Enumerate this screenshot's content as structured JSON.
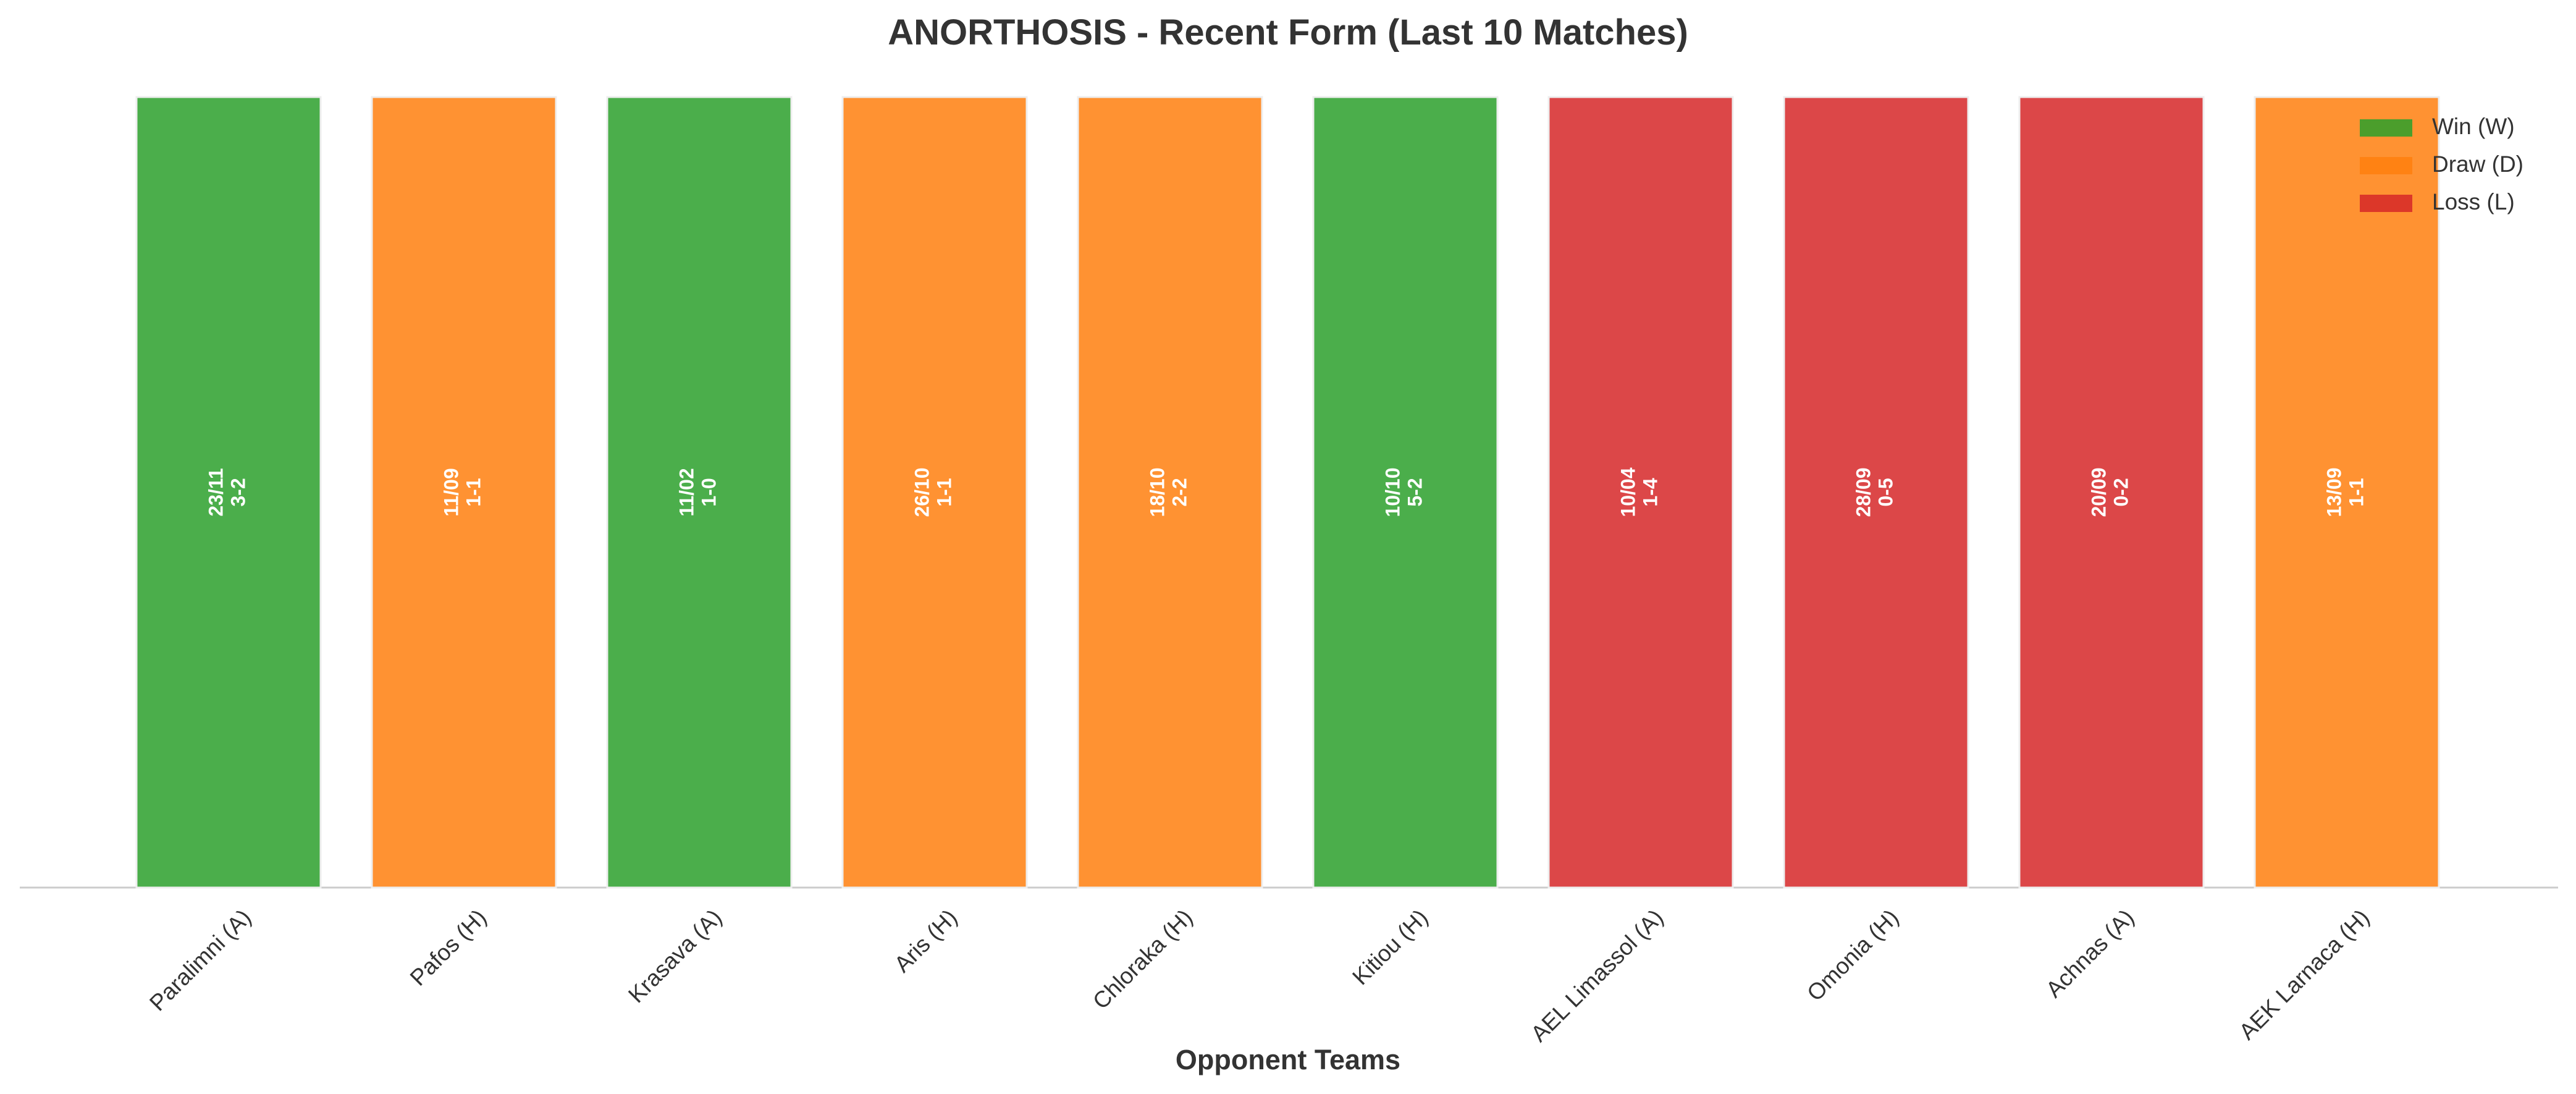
{
  "chart_data": {
    "type": "bar",
    "title": "ANORTHOSIS - Recent Form (Last 10 Matches)",
    "x_label": "Opponent Teams",
    "categories": [
      "Paralimni (A)",
      "Pafos (H)",
      "Krasava (A)",
      "Aris (H)",
      "Chloraka (H)",
      "Kitiou (H)",
      "AEL Limassol (A)",
      "Omonia (H)",
      "Achnas (A)",
      "AEK Larnaca (H)"
    ],
    "values": [
      1,
      1,
      1,
      1,
      1,
      1,
      1,
      1,
      1,
      1
    ],
    "ylim": [
      0,
      1
    ],
    "colors": [
      "#2ca02c",
      "#ff7f0e",
      "#2ca02c",
      "#ff7f0e",
      "#ff7f0e",
      "#2ca02c",
      "#d62728",
      "#d62728",
      "#d62728",
      "#ff7f0e"
    ],
    "dates": [
      "23/11",
      "11/09",
      "11/02",
      "26/10",
      "18/10",
      "10/10",
      "10/04",
      "28/09",
      "20/09",
      "13/09"
    ],
    "scores": [
      "3-2",
      "1-1",
      "1-0",
      "1-1",
      "2-2",
      "5-2",
      "1-4",
      "0-5",
      "0-2",
      "1-1"
    ],
    "legend": [
      {
        "name": "Win (W)",
        "color": "#2ca02c"
      },
      {
        "name": "Draw (D)",
        "color": "#ff7f0e"
      },
      {
        "name": "Loss (L)",
        "color": "#d62728"
      }
    ],
    "legend_position": "upper right"
  }
}
